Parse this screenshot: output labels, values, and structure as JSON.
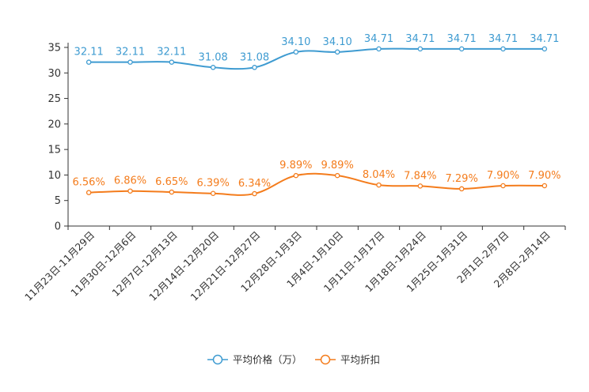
{
  "chart_data": {
    "type": "line",
    "title": "",
    "xlabel": "",
    "ylabel": "",
    "ylim": [
      0,
      35
    ],
    "yticks": [
      0,
      5,
      10,
      15,
      20,
      25,
      30,
      35
    ],
    "grid": false,
    "legend_position": "bottom-center",
    "categories": [
      "11月23日-11月29日",
      "11月30日-12月6日",
      "12月7日-12月13日",
      "12月14日-12月20日",
      "12月21日-12月27日",
      "12月28日-1月3日",
      "1月4日-1月10日",
      "1月11日-1月17日",
      "1月18日-1月24日",
      "1月25日-1月31日",
      "2月1日-2月7日",
      "2月8日-2月14日"
    ],
    "series": [
      {
        "name": "平均价格（万）",
        "color": "#3e9bd1",
        "values": [
          32.11,
          32.11,
          32.11,
          31.08,
          31.08,
          34.1,
          34.1,
          34.71,
          34.71,
          34.71,
          34.71,
          34.71
        ],
        "labels": [
          "32.11",
          "32.11",
          "32.11",
          "31.08",
          "31.08",
          "34.10",
          "34.10",
          "34.71",
          "34.71",
          "34.71",
          "34.71",
          "34.71"
        ]
      },
      {
        "name": "平均折扣",
        "color": "#f47c1c",
        "values": [
          6.56,
          6.86,
          6.65,
          6.39,
          6.34,
          9.89,
          9.89,
          8.04,
          7.84,
          7.29,
          7.9,
          7.9
        ],
        "labels": [
          "6.56%",
          "6.86%",
          "6.65%",
          "6.39%",
          "6.34%",
          "9.89%",
          "9.89%",
          "8.04%",
          "7.84%",
          "7.29%",
          "7.90%",
          "7.90%"
        ]
      }
    ]
  }
}
